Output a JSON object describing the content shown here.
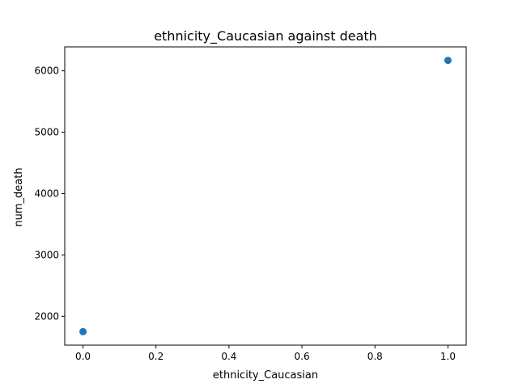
{
  "chart_data": {
    "type": "scatter",
    "title": "ethnicity_Caucasian against death",
    "xlabel": "ethnicity_Caucasian",
    "ylabel": "num_death",
    "xlim": [
      -0.05,
      1.05
    ],
    "ylim": [
      1530,
      6390
    ],
    "xticks": [
      0.0,
      0.2,
      0.4,
      0.6,
      0.8,
      1.0
    ],
    "xtick_labels": [
      "0.0",
      "0.2",
      "0.4",
      "0.6",
      "0.8",
      "1.0"
    ],
    "yticks": [
      2000,
      3000,
      4000,
      5000,
      6000
    ],
    "ytick_labels": [
      "2000",
      "3000",
      "4000",
      "5000",
      "6000"
    ],
    "grid": false,
    "marker_color": "#1f77b4",
    "points": [
      {
        "x": 0,
        "y": 1750
      },
      {
        "x": 1,
        "y": 6170
      }
    ]
  }
}
